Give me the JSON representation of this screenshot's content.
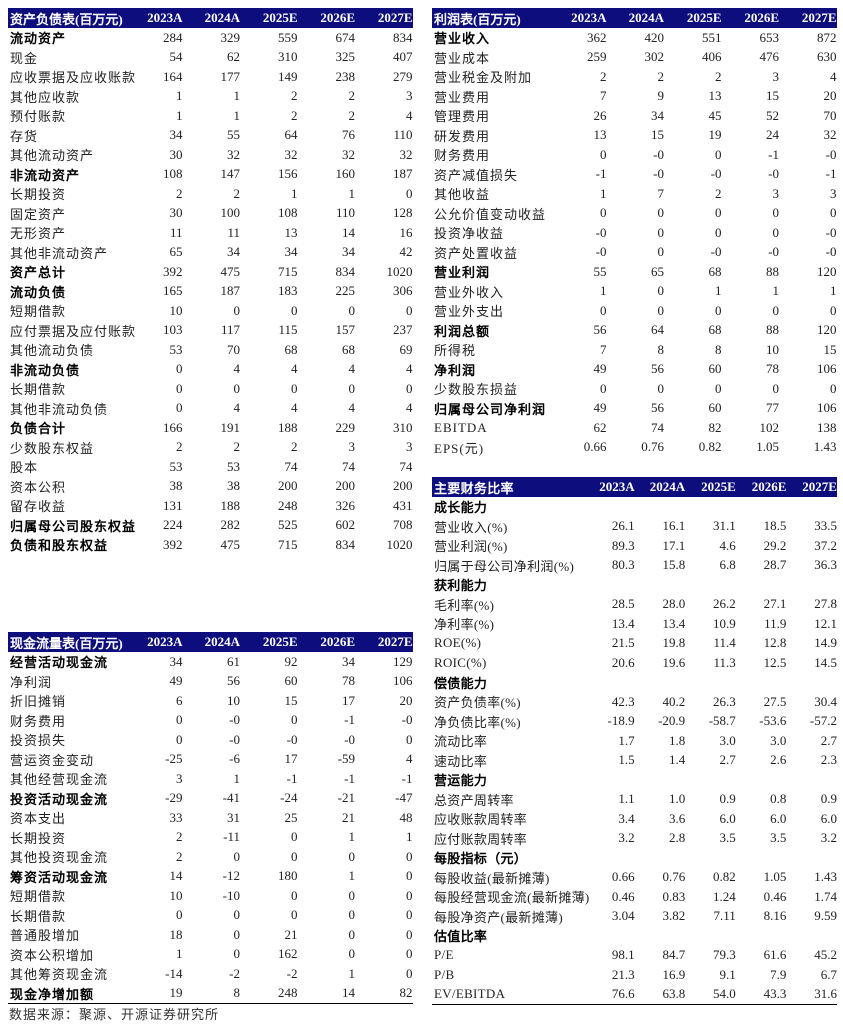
{
  "colors": {
    "header_bg": "#0d0d7e",
    "header_text": "#ffffff"
  },
  "balance_sheet": {
    "header": [
      "资产负债表(百万元)",
      "2023A",
      "2024A",
      "2025E",
      "2026E",
      "2027E"
    ],
    "rows": [
      {
        "label": "流动资产",
        "values": [
          "284",
          "329",
          "559",
          "674",
          "834"
        ],
        "bold": true
      },
      {
        "label": "现金",
        "values": [
          "54",
          "62",
          "310",
          "325",
          "407"
        ]
      },
      {
        "label": "应收票据及应收账款",
        "values": [
          "164",
          "177",
          "149",
          "238",
          "279"
        ]
      },
      {
        "label": "其他应收款",
        "values": [
          "1",
          "1",
          "2",
          "2",
          "3"
        ]
      },
      {
        "label": "预付账款",
        "values": [
          "1",
          "1",
          "2",
          "2",
          "4"
        ]
      },
      {
        "label": "存货",
        "values": [
          "34",
          "55",
          "64",
          "76",
          "110"
        ]
      },
      {
        "label": "其他流动资产",
        "values": [
          "30",
          "32",
          "32",
          "32",
          "32"
        ]
      },
      {
        "label": "非流动资产",
        "values": [
          "108",
          "147",
          "156",
          "160",
          "187"
        ],
        "bold": true
      },
      {
        "label": "长期投资",
        "values": [
          "2",
          "2",
          "1",
          "1",
          "0"
        ]
      },
      {
        "label": "固定资产",
        "values": [
          "30",
          "100",
          "108",
          "110",
          "128"
        ]
      },
      {
        "label": "无形资产",
        "values": [
          "11",
          "11",
          "13",
          "14",
          "16"
        ]
      },
      {
        "label": "其他非流动资产",
        "values": [
          "65",
          "34",
          "34",
          "34",
          "42"
        ]
      },
      {
        "label": "资产总计",
        "values": [
          "392",
          "475",
          "715",
          "834",
          "1020"
        ],
        "bold": true
      },
      {
        "label": "流动负债",
        "values": [
          "165",
          "187",
          "183",
          "225",
          "306"
        ],
        "bold": true
      },
      {
        "label": "短期借款",
        "values": [
          "10",
          "0",
          "0",
          "0",
          "0"
        ]
      },
      {
        "label": "应付票据及应付账款",
        "values": [
          "103",
          "117",
          "115",
          "157",
          "237"
        ]
      },
      {
        "label": "其他流动负债",
        "values": [
          "53",
          "70",
          "68",
          "68",
          "69"
        ]
      },
      {
        "label": "非流动负债",
        "values": [
          "0",
          "4",
          "4",
          "4",
          "4"
        ],
        "bold": true
      },
      {
        "label": "长期借款",
        "values": [
          "0",
          "0",
          "0",
          "0",
          "0"
        ]
      },
      {
        "label": "其他非流动负债",
        "values": [
          "0",
          "4",
          "4",
          "4",
          "4"
        ]
      },
      {
        "label": "负债合计",
        "values": [
          "166",
          "191",
          "188",
          "229",
          "310"
        ],
        "bold": true
      },
      {
        "label": "少数股东权益",
        "values": [
          "2",
          "2",
          "2",
          "3",
          "3"
        ]
      },
      {
        "label": "股本",
        "values": [
          "53",
          "53",
          "74",
          "74",
          "74"
        ]
      },
      {
        "label": "资本公积",
        "values": [
          "38",
          "38",
          "200",
          "200",
          "200"
        ]
      },
      {
        "label": "留存收益",
        "values": [
          "131",
          "188",
          "248",
          "326",
          "431"
        ]
      },
      {
        "label": "归属母公司股东权益",
        "values": [
          "224",
          "282",
          "525",
          "602",
          "708"
        ],
        "bold": true
      },
      {
        "label": "负债和股东权益",
        "values": [
          "392",
          "475",
          "715",
          "834",
          "1020"
        ],
        "bold": true
      }
    ]
  },
  "income_statement": {
    "header": [
      "利润表(百万元)",
      "2023A",
      "2024A",
      "2025E",
      "2026E",
      "2027E"
    ],
    "rows": [
      {
        "label": "营业收入",
        "values": [
          "362",
          "420",
          "551",
          "653",
          "872"
        ],
        "bold": true
      },
      {
        "label": "营业成本",
        "values": [
          "259",
          "302",
          "406",
          "476",
          "630"
        ]
      },
      {
        "label": "营业税金及附加",
        "values": [
          "2",
          "2",
          "2",
          "3",
          "4"
        ]
      },
      {
        "label": "营业费用",
        "values": [
          "7",
          "9",
          "13",
          "15",
          "20"
        ]
      },
      {
        "label": "管理费用",
        "values": [
          "26",
          "34",
          "45",
          "52",
          "70"
        ]
      },
      {
        "label": "研发费用",
        "values": [
          "13",
          "15",
          "19",
          "24",
          "32"
        ]
      },
      {
        "label": "财务费用",
        "values": [
          "0",
          "-0",
          "0",
          "-1",
          "-0"
        ]
      },
      {
        "label": "资产减值损失",
        "values": [
          "-1",
          "-0",
          "-0",
          "-0",
          "-1"
        ]
      },
      {
        "label": "其他收益",
        "values": [
          "1",
          "7",
          "2",
          "3",
          "3"
        ]
      },
      {
        "label": "公允价值变动收益",
        "values": [
          "0",
          "0",
          "0",
          "0",
          "0"
        ]
      },
      {
        "label": "投资净收益",
        "values": [
          "-0",
          "0",
          "0",
          "0",
          "-0"
        ]
      },
      {
        "label": "资产处置收益",
        "values": [
          "-0",
          "0",
          "-0",
          "-0",
          "-0"
        ]
      },
      {
        "label": "营业利润",
        "values": [
          "55",
          "65",
          "68",
          "88",
          "120"
        ],
        "bold": true
      },
      {
        "label": "营业外收入",
        "values": [
          "1",
          "0",
          "1",
          "1",
          "1"
        ]
      },
      {
        "label": "营业外支出",
        "values": [
          "0",
          "0",
          "0",
          "0",
          "0"
        ]
      },
      {
        "label": "利润总额",
        "values": [
          "56",
          "64",
          "68",
          "88",
          "120"
        ],
        "bold": true
      },
      {
        "label": "所得税",
        "values": [
          "7",
          "8",
          "8",
          "10",
          "15"
        ]
      },
      {
        "label": "净利润",
        "values": [
          "49",
          "56",
          "60",
          "78",
          "106"
        ],
        "bold": true
      },
      {
        "label": "少数股东损益",
        "values": [
          "0",
          "0",
          "0",
          "0",
          "0"
        ]
      },
      {
        "label": "归属母公司净利润",
        "values": [
          "49",
          "56",
          "60",
          "77",
          "106"
        ],
        "bold": true
      },
      {
        "label": "EBITDA",
        "values": [
          "62",
          "74",
          "82",
          "102",
          "138"
        ]
      },
      {
        "label": "EPS(元)",
        "values": [
          "0.66",
          "0.76",
          "0.82",
          "1.05",
          "1.43"
        ]
      }
    ]
  },
  "ratios": {
    "header": [
      "主要财务比率",
      "2023A",
      "2024A",
      "2025E",
      "2026E",
      "2027E"
    ],
    "rows": [
      {
        "label": "成长能力",
        "values": [],
        "bold": true
      },
      {
        "label": "营业收入(%)",
        "values": [
          "26.1",
          "16.1",
          "31.1",
          "18.5",
          "33.5"
        ]
      },
      {
        "label": "营业利润(%)",
        "values": [
          "89.3",
          "17.1",
          "4.6",
          "29.2",
          "37.2"
        ]
      },
      {
        "label": "归属于母公司净利润(%)",
        "values": [
          "80.3",
          "15.8",
          "6.8",
          "28.7",
          "36.3"
        ]
      },
      {
        "label": "获利能力",
        "values": [],
        "bold": true
      },
      {
        "label": "毛利率(%)",
        "values": [
          "28.5",
          "28.0",
          "26.2",
          "27.1",
          "27.8"
        ]
      },
      {
        "label": "净利率(%)",
        "values": [
          "13.4",
          "13.4",
          "10.9",
          "11.9",
          "12.1"
        ]
      },
      {
        "label": "ROE(%)",
        "values": [
          "21.5",
          "19.8",
          "11.4",
          "12.8",
          "14.9"
        ]
      },
      {
        "label": "ROIC(%)",
        "values": [
          "20.6",
          "19.6",
          "11.3",
          "12.5",
          "14.5"
        ]
      },
      {
        "label": "偿债能力",
        "values": [],
        "bold": true
      },
      {
        "label": "资产负债率(%)",
        "values": [
          "42.3",
          "40.2",
          "26.3",
          "27.5",
          "30.4"
        ]
      },
      {
        "label": "净负债比率(%)",
        "values": [
          "-18.9",
          "-20.9",
          "-58.7",
          "-53.6",
          "-57.2"
        ]
      },
      {
        "label": "流动比率",
        "values": [
          "1.7",
          "1.8",
          "3.0",
          "3.0",
          "2.7"
        ]
      },
      {
        "label": "速动比率",
        "values": [
          "1.5",
          "1.4",
          "2.7",
          "2.6",
          "2.3"
        ]
      },
      {
        "label": "营运能力",
        "values": [],
        "bold": true
      },
      {
        "label": "总资产周转率",
        "values": [
          "1.1",
          "1.0",
          "0.9",
          "0.8",
          "0.9"
        ]
      },
      {
        "label": "应收账款周转率",
        "values": [
          "3.4",
          "3.6",
          "6.0",
          "6.0",
          "6.0"
        ]
      },
      {
        "label": "应付账款周转率",
        "values": [
          "3.2",
          "2.8",
          "3.5",
          "3.5",
          "3.2"
        ]
      },
      {
        "label": "每股指标（元）",
        "values": [],
        "bold": true
      },
      {
        "label": "每股收益(最新摊薄)",
        "values": [
          "0.66",
          "0.76",
          "0.82",
          "1.05",
          "1.43"
        ]
      },
      {
        "label": "每股经营现金流(最新摊薄)",
        "values": [
          "0.46",
          "0.83",
          "1.24",
          "0.46",
          "1.74"
        ]
      },
      {
        "label": "每股净资产(最新摊薄)",
        "values": [
          "3.04",
          "3.82",
          "7.11",
          "8.16",
          "9.59"
        ]
      },
      {
        "label": "估值比率",
        "values": [],
        "bold": true
      },
      {
        "label": "P/E",
        "values": [
          "98.1",
          "84.7",
          "79.3",
          "61.6",
          "45.2"
        ]
      },
      {
        "label": "P/B",
        "values": [
          "21.3",
          "16.9",
          "9.1",
          "7.9",
          "6.7"
        ]
      },
      {
        "label": "EV/EBITDA",
        "values": [
          "76.6",
          "63.8",
          "54.0",
          "43.3",
          "31.6"
        ]
      }
    ]
  },
  "cash_flow": {
    "header": [
      "现金流量表(百万元)",
      "2023A",
      "2024A",
      "2025E",
      "2026E",
      "2027E"
    ],
    "rows": [
      {
        "label": "经营活动现金流",
        "values": [
          "34",
          "61",
          "92",
          "34",
          "129"
        ],
        "bold": true
      },
      {
        "label": "净利润",
        "values": [
          "49",
          "56",
          "60",
          "78",
          "106"
        ]
      },
      {
        "label": "折旧摊销",
        "values": [
          "6",
          "10",
          "15",
          "17",
          "20"
        ]
      },
      {
        "label": "财务费用",
        "values": [
          "0",
          "-0",
          "0",
          "-1",
          "-0"
        ]
      },
      {
        "label": "投资损失",
        "values": [
          "0",
          "-0",
          "-0",
          "-0",
          "0"
        ]
      },
      {
        "label": "营运资金变动",
        "values": [
          "-25",
          "-6",
          "17",
          "-59",
          "4"
        ]
      },
      {
        "label": "其他经营现金流",
        "values": [
          "3",
          "1",
          "-1",
          "-1",
          "-1"
        ]
      },
      {
        "label": "投资活动现金流",
        "values": [
          "-29",
          "-41",
          "-24",
          "-21",
          "-47"
        ],
        "bold": true
      },
      {
        "label": "资本支出",
        "values": [
          "33",
          "31",
          "25",
          "21",
          "48"
        ]
      },
      {
        "label": "长期投资",
        "values": [
          "2",
          "-11",
          "0",
          "1",
          "1"
        ]
      },
      {
        "label": "其他投资现金流",
        "values": [
          "2",
          "0",
          "0",
          "0",
          "0"
        ]
      },
      {
        "label": "筹资活动现金流",
        "values": [
          "14",
          "-12",
          "180",
          "1",
          "0"
        ],
        "bold": true
      },
      {
        "label": "短期借款",
        "values": [
          "10",
          "-10",
          "0",
          "0",
          "0"
        ]
      },
      {
        "label": "长期借款",
        "values": [
          "0",
          "0",
          "0",
          "0",
          "0"
        ]
      },
      {
        "label": "普通股增加",
        "values": [
          "18",
          "0",
          "21",
          "0",
          "0"
        ]
      },
      {
        "label": "资本公积增加",
        "values": [
          "1",
          "0",
          "162",
          "0",
          "0"
        ]
      },
      {
        "label": "其他筹资现金流",
        "values": [
          "-14",
          "-2",
          "-2",
          "1",
          "0"
        ]
      },
      {
        "label": "现金净增加额",
        "values": [
          "19",
          "8",
          "248",
          "14",
          "82"
        ],
        "bold": true
      }
    ]
  },
  "source_note": "数据来源：聚源、开源证券研究所"
}
